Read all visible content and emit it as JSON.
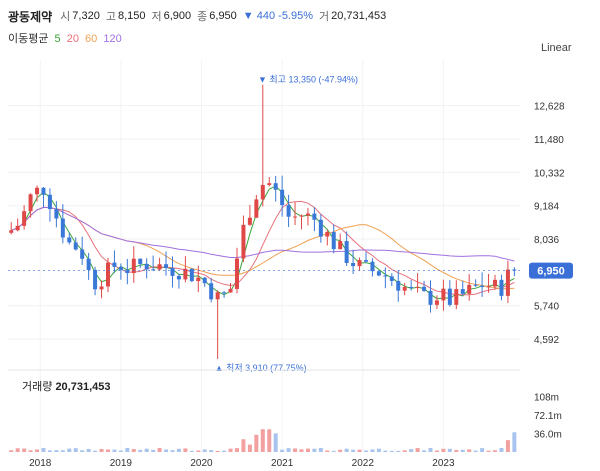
{
  "header": {
    "name": "광동제약",
    "open_label": "시",
    "open": "7,320",
    "high_label": "고",
    "high": "8,150",
    "low_label": "저",
    "low": "6,900",
    "close_label": "종",
    "close": "6,950",
    "change": "▼ 440 -5.95%",
    "volume_label": "거",
    "volume": "20,731,453"
  },
  "ma": {
    "label": "이동평균",
    "p5": "5",
    "p20": "20",
    "p60": "60",
    "p120": "120",
    "colors": {
      "p5": "#3aa53a",
      "p20": "#e8707a",
      "p60": "#f0a050",
      "p120": "#a070e0"
    }
  },
  "scale_label": "Linear",
  "volume_panel": {
    "label": "거래량",
    "value": "20,731,453"
  },
  "colors": {
    "up": "#e04848",
    "down": "#3a78d8",
    "vol_up": "#f2a0a0",
    "vol_down": "#a8c4ee"
  },
  "chart_data": {
    "type": "candlestick",
    "current_price": 6950,
    "current_price_label": "6,950",
    "y_ticks": [
      "12,628",
      "11,480",
      "10,332",
      "9,184",
      "8,036",
      "5,740",
      "4,592"
    ],
    "y_tick_values": [
      12628,
      11480,
      10332,
      9184,
      8036,
      5740,
      4592
    ],
    "ylim": [
      3700,
      14200
    ],
    "x_ticks": [
      "2018",
      "2019",
      "2020",
      "2021",
      "2022",
      "2023"
    ],
    "x_tick_values": [
      2018,
      2019,
      2020,
      2021,
      2022,
      2023
    ],
    "xlim": [
      2017.6,
      2023.95
    ],
    "annotations": {
      "high": {
        "text": "▼ 최고 13,350 (-47.94%)",
        "x": 2020.75,
        "value": 13350
      },
      "low": {
        "text": "▲ 최저 3,910 (77.75%)",
        "x": 2020.2,
        "value": 3910
      }
    },
    "volume": {
      "ticks": [
        "108m",
        "72.1m",
        "36.0m"
      ],
      "tick_values": [
        108000000,
        72100000,
        36000000
      ],
      "ylim": [
        0,
        125000000
      ]
    }
  }
}
